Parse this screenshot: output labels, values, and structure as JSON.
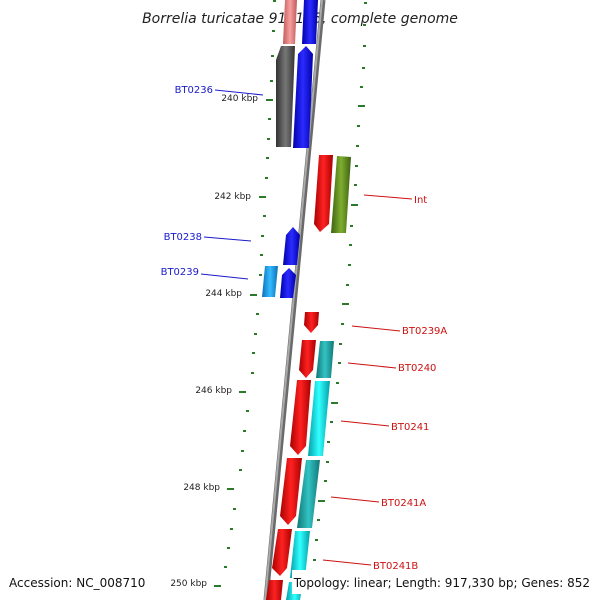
{
  "title": "Borrelia turicatae 91E135, complete genome",
  "footer": {
    "accession": "Accession: NC_008710",
    "summary": "Topology: linear; Length: 917,330 bp; Genes: 852"
  },
  "ticks": [
    "240 kbp",
    "242 kbp",
    "244 kbp",
    "246 kbp",
    "248 kbp",
    "250 kbp"
  ],
  "labels": {
    "bt0236": "BT0236",
    "bt0238": "BT0238",
    "bt0239": "BT0239",
    "int": "Int",
    "bt0239a": "BT0239A",
    "bt0240": "BT0240",
    "bt0241": "BT0241",
    "bt0241a": "BT0241A",
    "bt0241b": "BT0241B"
  },
  "colors": {
    "backbone": "#888888",
    "blue": "#1010ee",
    "red": "#ee1111",
    "cyan": "#11e6ee",
    "teal": "#22b3b3",
    "gray": "#666666",
    "olive": "#6e9a28",
    "lightblue": "#1aa6ee",
    "pink": "#ee8a8a",
    "tick": "#2a7a2a",
    "label_blue": "#1a1acc",
    "label_red": "#cc1111"
  }
}
